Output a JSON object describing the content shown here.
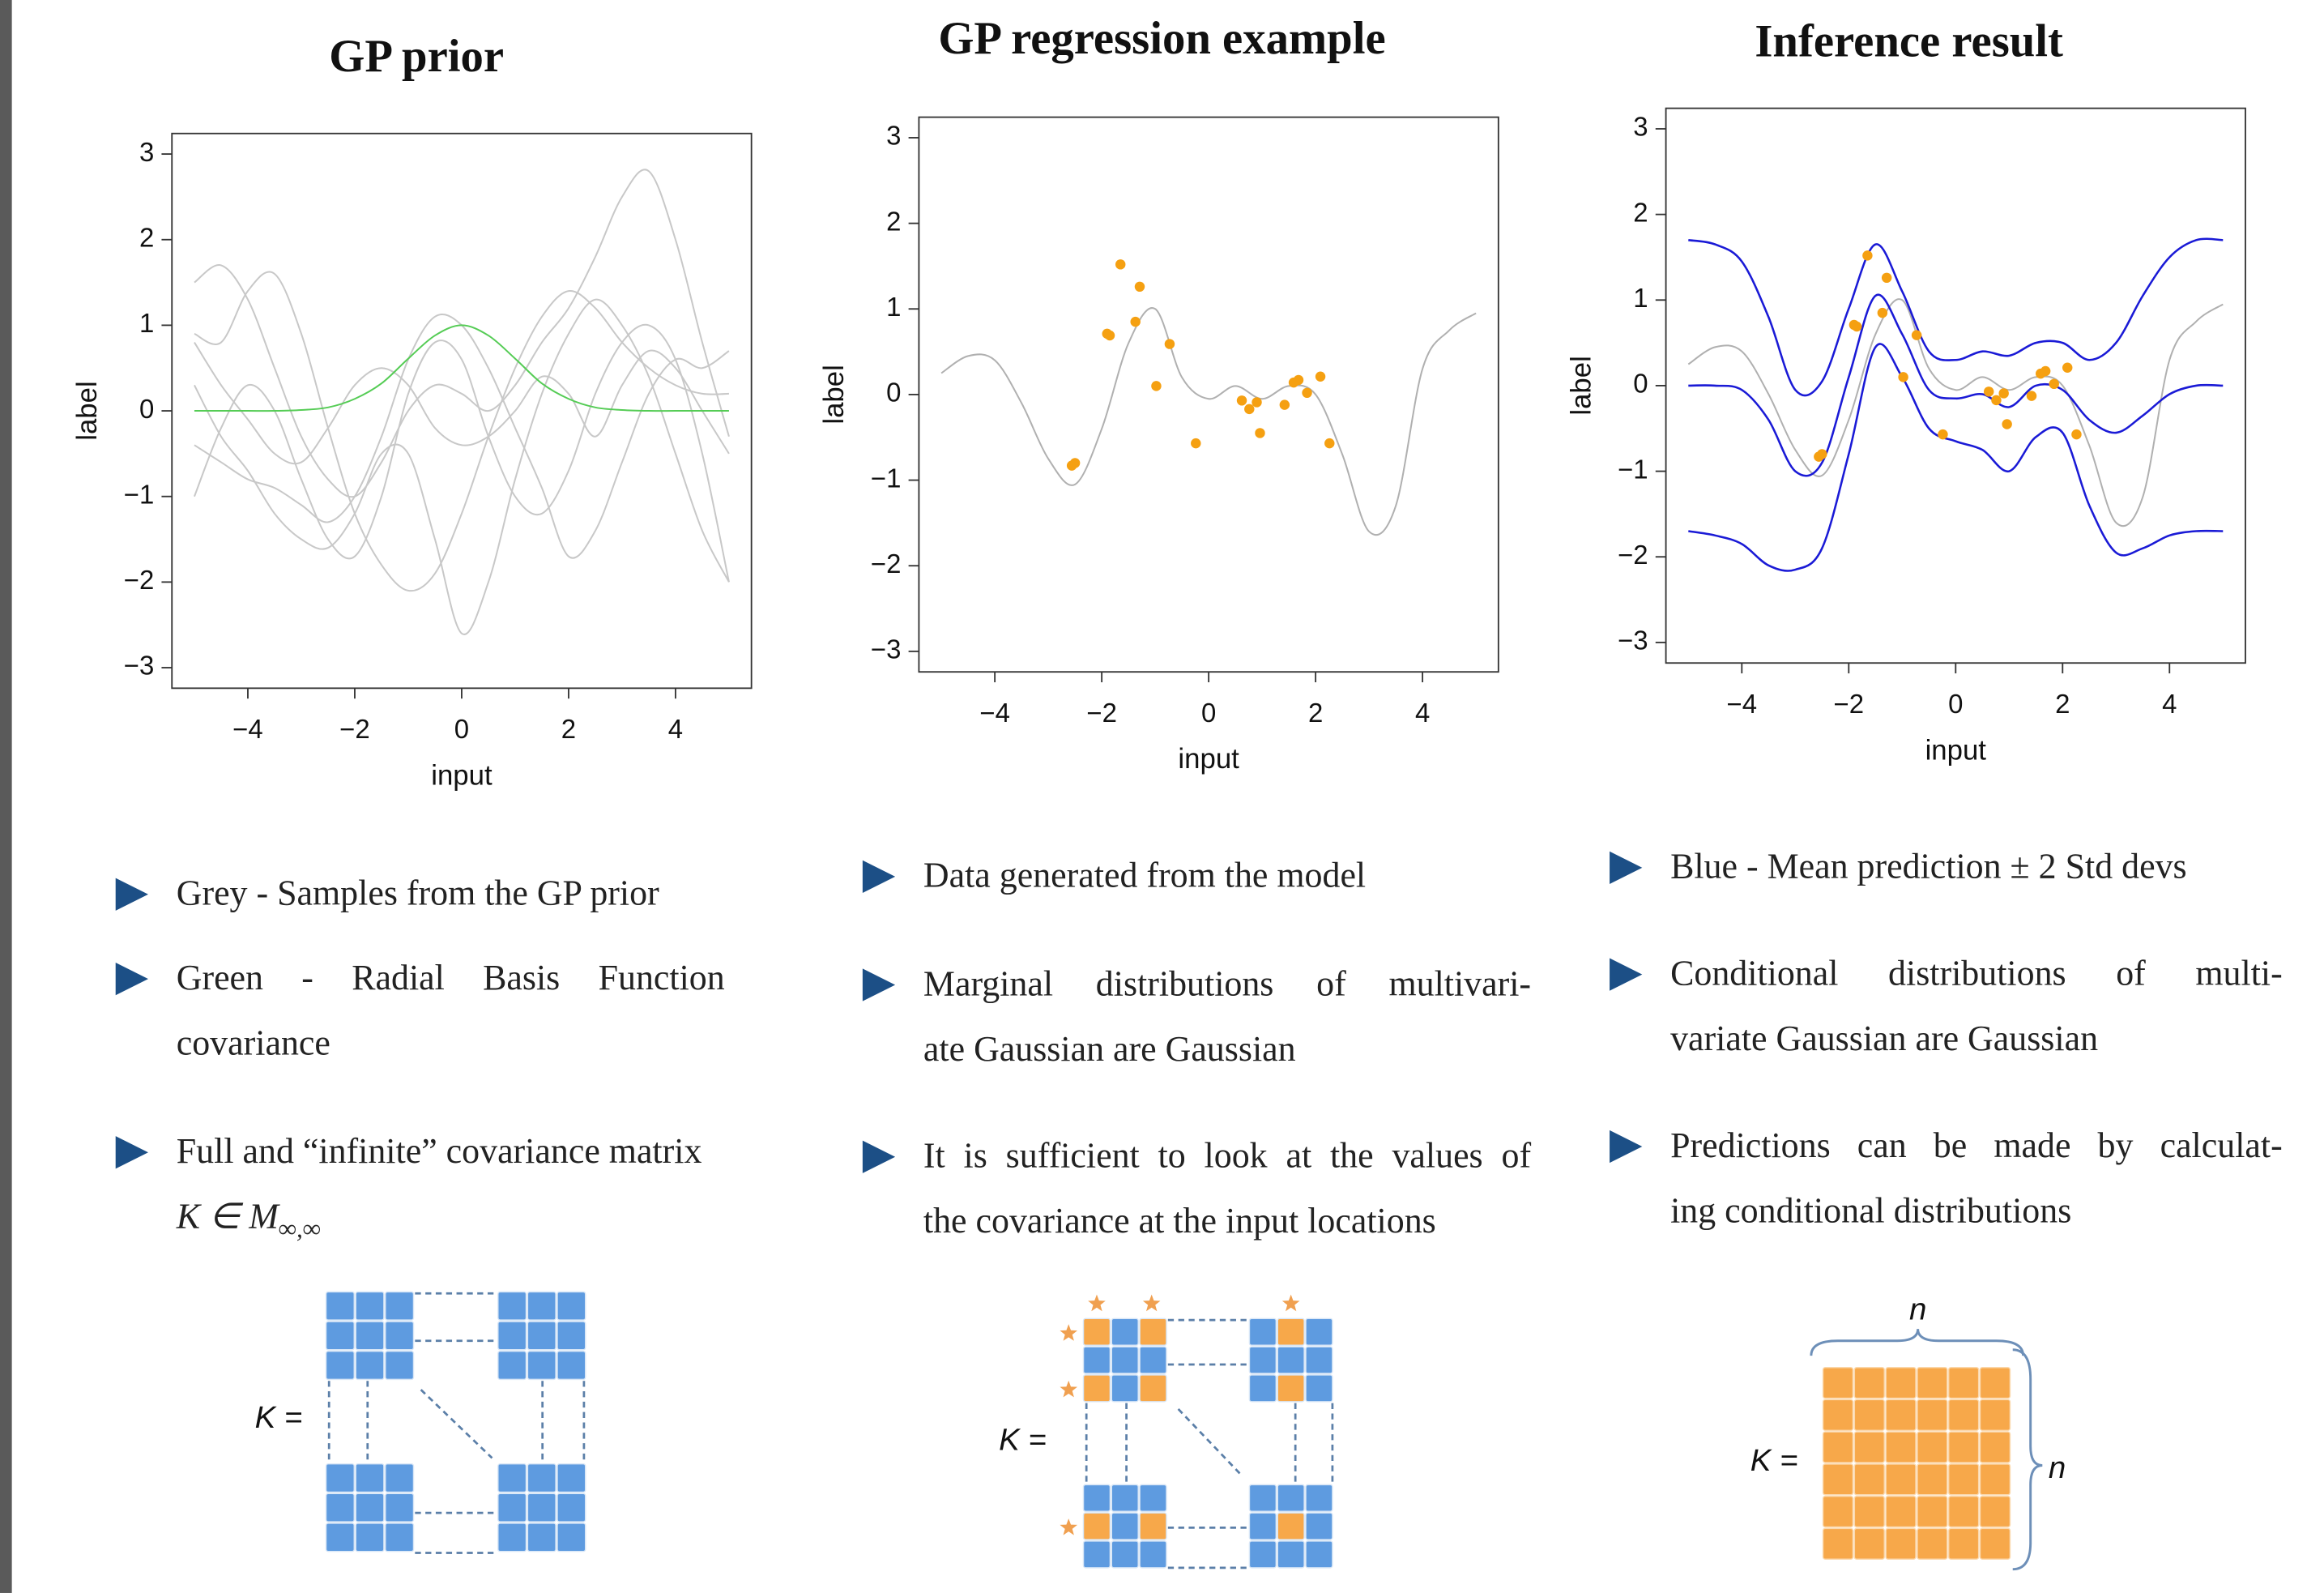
{
  "chart_data": [
    {
      "type": "line",
      "title": "GP prior",
      "xlabel": "input",
      "ylabel": "label",
      "xlim": [
        -5.42,
        5.42
      ],
      "ylim": [
        -3.24,
        3.24
      ],
      "xticks": [
        {
          "value": -4,
          "label": "−4"
        },
        {
          "value": -2,
          "label": "−2"
        },
        0,
        2,
        4
      ],
      "yticks": [
        {
          "value": -3,
          "label": "−3"
        },
        {
          "value": -2,
          "label": "−2"
        },
        {
          "value": -1,
          "label": "−1"
        },
        0,
        1,
        2,
        3
      ],
      "x": [
        -5,
        -4.5,
        -4,
        -3.5,
        -3,
        -2.5,
        -2,
        -1.5,
        -1,
        -0.5,
        0,
        0.5,
        1,
        1.5,
        2,
        2.5,
        3,
        3.5,
        4,
        4.5,
        5
      ],
      "series": [
        {
          "type": "line",
          "color": "#c8c8c8",
          "values": [
            1.5,
            1.7,
            1.3,
            0.5,
            -0.3,
            -0.8,
            -1.0,
            -0.6,
            0.0,
            0.3,
            0.2,
            0.0,
            0.3,
            0.8,
            1.2,
            1.8,
            2.5,
            2.8,
            2.0,
            0.8,
            -0.3
          ]
        },
        {
          "type": "line",
          "color": "#c8c8c8",
          "values": [
            0.9,
            0.8,
            1.4,
            1.6,
            0.9,
            -0.2,
            -1.2,
            -1.8,
            -2.1,
            -1.9,
            -1.2,
            -0.3,
            0.5,
            1.1,
            1.4,
            1.2,
            0.8,
            0.5,
            0.3,
            0.2,
            0.2
          ]
        },
        {
          "type": "line",
          "color": "#c8c8c8",
          "values": [
            -1.0,
            -0.2,
            0.3,
            0.0,
            -0.8,
            -1.5,
            -1.7,
            -1.0,
            0.2,
            0.8,
            0.6,
            -0.3,
            -1.0,
            -1.2,
            -0.7,
            0.2,
            0.8,
            1.0,
            0.6,
            -0.5,
            -2.0
          ]
        },
        {
          "type": "line",
          "color": "#c8c8c8",
          "values": [
            0.3,
            -0.3,
            -0.7,
            -1.2,
            -1.5,
            -1.6,
            -1.2,
            -0.5,
            -0.5,
            -1.5,
            -2.6,
            -2.0,
            -0.8,
            0.2,
            0.9,
            1.3,
            1.0,
            0.4,
            -0.5,
            -1.4,
            -2.0
          ]
        },
        {
          "type": "line",
          "color": "#c8c8c8",
          "values": [
            -0.4,
            -0.6,
            -0.8,
            -0.9,
            -1.1,
            -1.3,
            -1.0,
            -0.3,
            0.6,
            1.1,
            1.0,
            0.5,
            -0.2,
            -0.9,
            -1.7,
            -1.4,
            -0.6,
            0.2,
            0.6,
            0.5,
            0.7
          ]
        },
        {
          "type": "line",
          "color": "#c8c8c8",
          "values": [
            0.8,
            0.3,
            -0.1,
            -0.5,
            -0.6,
            -0.2,
            0.3,
            0.5,
            0.3,
            -0.2,
            -0.4,
            -0.3,
            0.0,
            0.4,
            0.2,
            -0.3,
            0.3,
            0.7,
            0.5,
            0.0,
            -0.5
          ]
        },
        {
          "type": "line",
          "color": "#55cc55",
          "values": [
            0,
            0,
            0,
            0,
            0.01,
            0.04,
            0.14,
            0.32,
            0.61,
            0.88,
            1,
            0.88,
            0.61,
            0.32,
            0.14,
            0.04,
            0.01,
            0,
            0,
            0,
            0
          ]
        }
      ]
    },
    {
      "type": "line",
      "title": "GP regression example",
      "xlabel": "input",
      "ylabel": "label",
      "xlim": [
        -5.42,
        5.42
      ],
      "ylim": [
        -3.24,
        3.24
      ],
      "xticks": [
        {
          "value": -4,
          "label": "−4"
        },
        {
          "value": -2,
          "label": "−2"
        },
        0,
        2,
        4
      ],
      "yticks": [
        {
          "value": -3,
          "label": "−3"
        },
        {
          "value": -2,
          "label": "−2"
        },
        {
          "value": -1,
          "label": "−1"
        },
        0,
        1,
        2,
        3
      ],
      "x": [
        -5,
        -4.5,
        -4,
        -3.5,
        -3,
        -2.5,
        -2,
        -1.5,
        -1,
        -0.5,
        0,
        0.5,
        1,
        1.5,
        2,
        2.5,
        3,
        3.5,
        4,
        4.5,
        5
      ],
      "series": [
        {
          "type": "line",
          "color": "#b0b0b0",
          "values": [
            0.25,
            0.45,
            0.4,
            -0.1,
            -0.75,
            -1.05,
            -0.4,
            0.6,
            1.0,
            0.2,
            -0.05,
            0.1,
            -0.05,
            0.1,
            0.0,
            -0.7,
            -1.6,
            -1.3,
            0.3,
            0.75,
            0.95
          ]
        },
        {
          "type": "scatter",
          "color": "#f5a011",
          "x": [
            -2.56,
            -2.5,
            -1.9,
            -1.85,
            -1.65,
            -1.37,
            -1.29,
            -0.98,
            -0.73,
            -0.24,
            0.62,
            0.76,
            0.9,
            0.96,
            1.42,
            1.59,
            1.68,
            1.84,
            2.09,
            2.26
          ],
          "values": [
            -0.83,
            -0.8,
            0.71,
            0.69,
            1.52,
            0.85,
            1.26,
            0.1,
            0.59,
            -0.57,
            -0.07,
            -0.17,
            -0.09,
            -0.45,
            -0.12,
            0.14,
            0.17,
            0.02,
            0.21,
            -0.57
          ]
        }
      ]
    },
    {
      "type": "line",
      "title": "Inference result",
      "xlabel": "input",
      "ylabel": "label",
      "xlim": [
        -5.42,
        5.42
      ],
      "ylim": [
        -3.24,
        3.24
      ],
      "xticks": [
        {
          "value": -4,
          "label": "−4"
        },
        {
          "value": -2,
          "label": "−2"
        },
        0,
        2,
        4
      ],
      "yticks": [
        {
          "value": -3,
          "label": "−3"
        },
        {
          "value": -2,
          "label": "−2"
        },
        {
          "value": -1,
          "label": "−1"
        },
        0,
        1,
        2,
        3
      ],
      "x": [
        -5,
        -4.5,
        -4,
        -3.5,
        -3,
        -2.5,
        -2,
        -1.5,
        -1,
        -0.5,
        0,
        0.5,
        1,
        1.5,
        2,
        2.5,
        3,
        3.5,
        4,
        4.5,
        5
      ],
      "series": [
        {
          "type": "line",
          "color": "#b0b0b0",
          "values": [
            0.25,
            0.45,
            0.4,
            -0.1,
            -0.75,
            -1.05,
            -0.4,
            0.6,
            1.0,
            0.2,
            -0.05,
            0.1,
            -0.05,
            0.1,
            0.0,
            -0.7,
            -1.6,
            -1.3,
            0.3,
            0.75,
            0.95
          ]
        },
        {
          "type": "line",
          "color": "#1a1ad6",
          "values": [
            1.7,
            1.65,
            1.45,
            0.8,
            -0.05,
            0.05,
            0.9,
            1.65,
            1.1,
            0.4,
            0.3,
            0.4,
            0.35,
            0.5,
            0.5,
            0.3,
            0.5,
            1.05,
            1.5,
            1.7,
            1.7
          ]
        },
        {
          "type": "line",
          "color": "#1a1ad6",
          "values": [
            0,
            0,
            -0.05,
            -0.4,
            -1.0,
            -0.9,
            0.1,
            1.05,
            0.6,
            -0.05,
            -0.15,
            -0.1,
            -0.25,
            0.0,
            -0.05,
            -0.4,
            -0.55,
            -0.35,
            -0.1,
            0,
            0
          ]
        },
        {
          "type": "line",
          "color": "#1a1ad6",
          "values": [
            -1.7,
            -1.75,
            -1.85,
            -2.1,
            -2.15,
            -1.9,
            -0.8,
            0.45,
            0.1,
            -0.5,
            -0.65,
            -0.75,
            -1.0,
            -0.6,
            -0.55,
            -1.4,
            -1.95,
            -1.9,
            -1.75,
            -1.7,
            -1.7
          ]
        },
        {
          "type": "scatter",
          "color": "#f5a011",
          "x": [
            -2.56,
            -2.5,
            -1.9,
            -1.85,
            -1.65,
            -1.37,
            -1.29,
            -0.98,
            -0.73,
            -0.24,
            0.62,
            0.76,
            0.9,
            0.96,
            1.42,
            1.59,
            1.68,
            1.84,
            2.09,
            2.26
          ],
          "values": [
            -0.83,
            -0.8,
            0.71,
            0.69,
            1.52,
            0.85,
            1.26,
            0.1,
            0.59,
            -0.57,
            -0.07,
            -0.17,
            -0.09,
            -0.45,
            -0.12,
            0.14,
            0.17,
            0.02,
            0.21,
            -0.57
          ]
        }
      ]
    }
  ],
  "bullets": [
    [
      {
        "lines": [
          "Grey - Samples from the GP prior"
        ]
      },
      {
        "lines": [
          "Green - Radial Basis Function",
          "covariance"
        ]
      },
      {
        "lines": [
          "Full and “infinite” covariance matrix"
        ],
        "math": {
          "main": "K ∈ M",
          "sub": "∞,∞"
        }
      }
    ],
    [
      {
        "lines": [
          "Data generated from the model"
        ]
      },
      {
        "lines": [
          "Marginal distributions of multivari-",
          "ate Gaussian are Gaussian"
        ]
      },
      {
        "lines": [
          "It is sufficient to look at the values of",
          "the covariance at the input locations"
        ]
      }
    ],
    [
      {
        "lines": [
          "Blue - Mean prediction ± 2 Std devs"
        ]
      },
      {
        "lines": [
          "Conditional distributions of multi-",
          "variate Gaussian are Gaussian"
        ]
      },
      {
        "lines": [
          "Predictions can be made by calculat-",
          "ing conditional distributions"
        ]
      }
    ]
  ],
  "diagrams": [
    {
      "label": "K ="
    },
    {
      "label": "K ="
    },
    {
      "label": "K =",
      "n_top": "n",
      "n_right": "n"
    }
  ]
}
